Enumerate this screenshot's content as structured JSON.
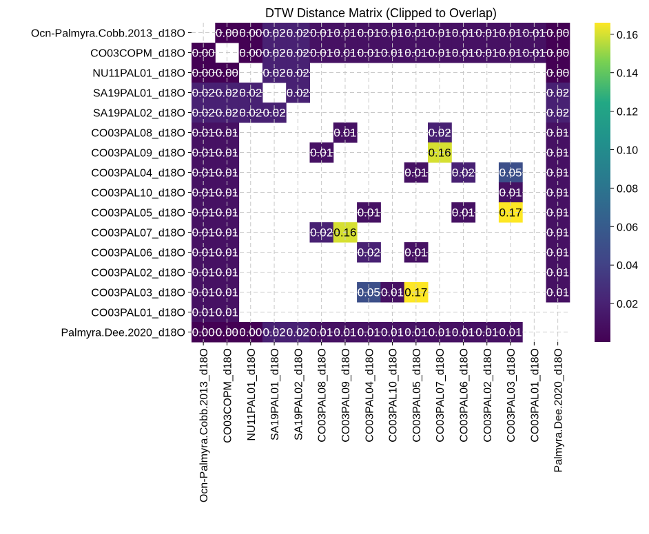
{
  "chart_data": {
    "type": "heatmap",
    "title": "DTW Distance Matrix (Clipped to Overlap)",
    "xlabel": "",
    "ylabel": "",
    "labels": [
      "Ocn-Palmyra.Cobb.2013_d18O",
      "CO03COPM_d18O",
      "NU11PAL01_d18O",
      "SA19PAL01_d18O",
      "SA19PAL02_d18O",
      "CO03PAL08_d18O",
      "CO03PAL09_d18O",
      "CO03PAL04_d18O",
      "CO03PAL10_d18O",
      "CO03PAL05_d18O",
      "CO03PAL07_d18O",
      "CO03PAL06_d18O",
      "CO03PAL02_d18O",
      "CO03PAL03_d18O",
      "CO03PAL01_d18O",
      "Palmyra.Dee.2020_d18O"
    ],
    "matrix": [
      [
        null,
        0.0,
        0.0,
        0.02,
        0.02,
        0.01,
        0.01,
        0.01,
        0.01,
        0.01,
        0.01,
        0.01,
        0.01,
        0.01,
        0.01,
        0.0
      ],
      [
        0.0,
        null,
        0.0,
        0.02,
        0.02,
        0.01,
        0.01,
        0.01,
        0.01,
        0.01,
        0.01,
        0.01,
        0.01,
        0.01,
        0.01,
        0.0
      ],
      [
        0.0,
        0.0,
        null,
        0.02,
        0.02,
        null,
        null,
        null,
        null,
        null,
        null,
        null,
        null,
        null,
        null,
        0.0
      ],
      [
        0.02,
        0.02,
        0.02,
        null,
        0.02,
        null,
        null,
        null,
        null,
        null,
        null,
        null,
        null,
        null,
        null,
        0.02
      ],
      [
        0.02,
        0.02,
        0.02,
        0.02,
        null,
        null,
        null,
        null,
        null,
        null,
        null,
        null,
        null,
        null,
        null,
        0.02
      ],
      [
        0.01,
        0.01,
        null,
        null,
        null,
        null,
        0.01,
        null,
        null,
        null,
        0.02,
        null,
        null,
        null,
        null,
        0.01
      ],
      [
        0.01,
        0.01,
        null,
        null,
        null,
        0.01,
        null,
        null,
        null,
        null,
        0.16,
        null,
        null,
        null,
        null,
        0.01
      ],
      [
        0.01,
        0.01,
        null,
        null,
        null,
        null,
        null,
        null,
        null,
        0.01,
        null,
        0.02,
        null,
        0.05,
        null,
        0.01
      ],
      [
        0.01,
        0.01,
        null,
        null,
        null,
        null,
        null,
        null,
        null,
        null,
        null,
        null,
        null,
        0.01,
        null,
        0.01
      ],
      [
        0.01,
        0.01,
        null,
        null,
        null,
        null,
        null,
        0.01,
        null,
        null,
        null,
        0.01,
        null,
        0.17,
        null,
        0.01
      ],
      [
        0.01,
        0.01,
        null,
        null,
        null,
        0.02,
        0.16,
        null,
        null,
        null,
        null,
        null,
        null,
        null,
        null,
        0.01
      ],
      [
        0.01,
        0.01,
        null,
        null,
        null,
        null,
        null,
        0.02,
        null,
        0.01,
        null,
        null,
        null,
        null,
        null,
        0.01
      ],
      [
        0.01,
        0.01,
        null,
        null,
        null,
        null,
        null,
        null,
        null,
        null,
        null,
        null,
        null,
        null,
        null,
        0.01
      ],
      [
        0.01,
        0.01,
        null,
        null,
        null,
        null,
        null,
        0.05,
        0.01,
        0.17,
        null,
        null,
        null,
        null,
        null,
        0.01
      ],
      [
        0.01,
        0.01,
        null,
        null,
        null,
        null,
        null,
        null,
        null,
        null,
        null,
        null,
        null,
        null,
        null,
        null
      ],
      [
        0.0,
        0.0,
        0.0,
        0.02,
        0.02,
        0.01,
        0.01,
        0.01,
        0.01,
        0.01,
        0.01,
        0.01,
        0.01,
        0.01,
        null,
        null
      ]
    ],
    "annotation_format": "2 decimals",
    "colormap": "viridis",
    "value_range": [
      0.0,
      0.166
    ],
    "colorbar_ticks": [
      0.02,
      0.04,
      0.06,
      0.08,
      0.1,
      0.12,
      0.14,
      0.16
    ],
    "grid": true,
    "grid_style": "dashed"
  }
}
